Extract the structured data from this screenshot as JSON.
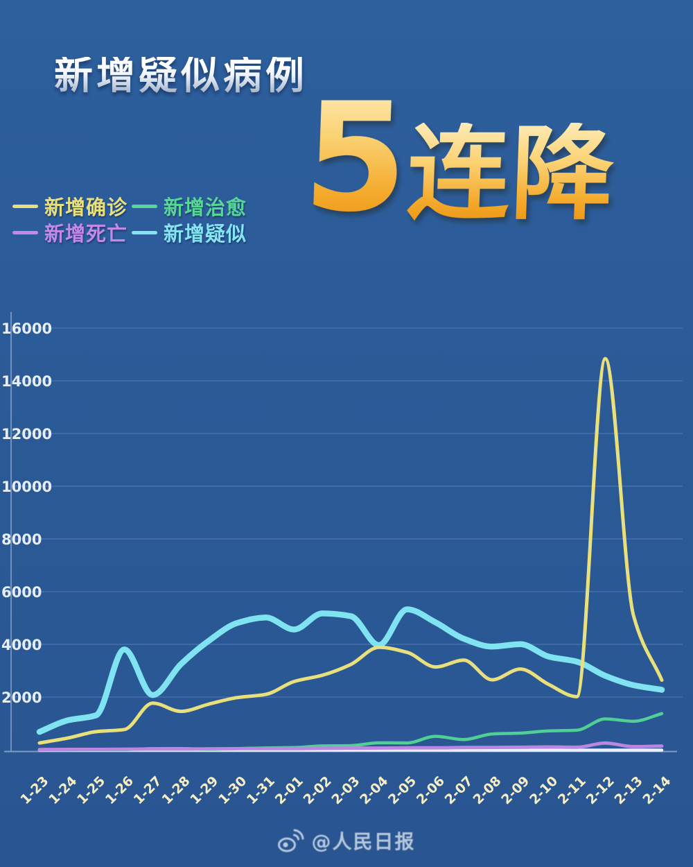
{
  "header": {
    "title": "新增疑似病例",
    "headline_number": "5",
    "headline_text": "连降"
  },
  "legend": {
    "items": [
      {
        "key": "confirmed",
        "label": "新增确诊",
        "color": "#e9e07b"
      },
      {
        "key": "cured",
        "label": "新增治愈",
        "color": "#57d796"
      },
      {
        "key": "deaths",
        "label": "新增死亡",
        "color": "#c488ea"
      },
      {
        "key": "suspected",
        "label": "新增疑似",
        "color": "#84e4f2"
      }
    ]
  },
  "footer": {
    "watermark_icon": "weibo-icon",
    "watermark_text": "@人民日报"
  },
  "colors": {
    "background": "#2b5b98",
    "headline_gold": "#f6b540",
    "title_silver": "#ffffff",
    "x_label": "#f6efc6",
    "y_label": "#e7edf5",
    "baseline": "#e9eefb",
    "gridline": "rgba(190,210,240,0.20)"
  },
  "chart_data": {
    "type": "line",
    "title": "新增疑似病例",
    "headline": "5连降",
    "categories": [
      "1-23",
      "1-24",
      "1-25",
      "1-26",
      "1-27",
      "1-28",
      "1-29",
      "1-30",
      "1-31",
      "2-01",
      "2-02",
      "2-03",
      "2-04",
      "2-05",
      "2-06",
      "2-07",
      "2-08",
      "2-09",
      "2-10",
      "2-11",
      "2-12",
      "2-13",
      "2-14"
    ],
    "series": [
      {
        "name": "新增确诊",
        "key": "confirmed",
        "color": "#e9e07b",
        "values": [
          259,
          444,
          688,
          769,
          1771,
          1459,
          1737,
          1982,
          2102,
          2590,
          2829,
          3235,
          3887,
          3694,
          3143,
          3399,
          2656,
          3062,
          2478,
          2015,
          14840,
          5090,
          2641
        ]
      },
      {
        "name": "新增治愈",
        "key": "cured",
        "color": "#4fd095",
        "values": [
          6,
          3,
          11,
          9,
          43,
          46,
          21,
          47,
          72,
          85,
          147,
          157,
          262,
          261,
          510,
          387,
          600,
          632,
          716,
          744,
          1171,
          1081,
          1373
        ]
      },
      {
        "name": "新增死亡",
        "key": "deaths",
        "color": "#ba86e2",
        "values": [
          8,
          16,
          15,
          24,
          26,
          26,
          38,
          43,
          46,
          45,
          57,
          64,
          65,
          73,
          73,
          86,
          89,
          97,
          108,
          97,
          254,
          121,
          143
        ]
      },
      {
        "name": "新增疑似",
        "key": "suspected",
        "color": "#7fe3f1",
        "values": [
          680,
          1118,
          1309,
          3806,
          2077,
          3248,
          4148,
          4812,
          5019,
          4562,
          5173,
          5072,
          3971,
          5328,
          4833,
          4214,
          3916,
          4008,
          3536,
          3342,
          2807,
          2450,
          2277
        ]
      }
    ],
    "ylabel": "",
    "xlabel": "",
    "ylim": [
      0,
      16000
    ],
    "yticks": [
      2000,
      4000,
      6000,
      8000,
      10000,
      12000,
      14000,
      16000
    ],
    "grid": true,
    "legend_position": "top-left",
    "smooth": true
  }
}
